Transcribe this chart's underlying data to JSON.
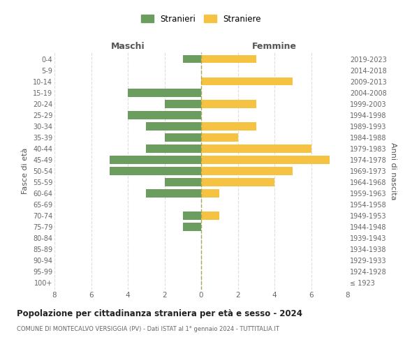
{
  "age_groups": [
    "100+",
    "95-99",
    "90-94",
    "85-89",
    "80-84",
    "75-79",
    "70-74",
    "65-69",
    "60-64",
    "55-59",
    "50-54",
    "45-49",
    "40-44",
    "35-39",
    "30-34",
    "25-29",
    "20-24",
    "15-19",
    "10-14",
    "5-9",
    "0-4"
  ],
  "birth_years": [
    "≤ 1923",
    "1924-1928",
    "1929-1933",
    "1934-1938",
    "1939-1943",
    "1944-1948",
    "1949-1953",
    "1954-1958",
    "1959-1963",
    "1964-1968",
    "1969-1973",
    "1974-1978",
    "1979-1983",
    "1984-1988",
    "1989-1993",
    "1994-1998",
    "1999-2003",
    "2004-2008",
    "2009-2013",
    "2014-2018",
    "2019-2023"
  ],
  "maschi": [
    0,
    0,
    0,
    0,
    0,
    1,
    1,
    0,
    3,
    2,
    5,
    5,
    3,
    2,
    3,
    4,
    2,
    4,
    0,
    0,
    1
  ],
  "femmine": [
    0,
    0,
    0,
    0,
    0,
    0,
    1,
    0,
    1,
    4,
    5,
    7,
    6,
    2,
    3,
    0,
    3,
    0,
    5,
    0,
    3
  ],
  "color_maschi": "#6b9e5e",
  "color_femmine": "#f5c242",
  "title": "Popolazione per cittadinanza straniera per età e sesso - 2024",
  "subtitle": "COMUNE DI MONTECALVO VERSIGGIA (PV) - Dati ISTAT al 1° gennaio 2024 - TUTTITALIA.IT",
  "ylabel_left": "Fasce di età",
  "ylabel_right": "Anni di nascita",
  "label_maschi": "Maschi",
  "label_femmine": "Femmine",
  "legend_maschi": "Stranieri",
  "legend_femmine": "Straniere",
  "xlim": 8,
  "background_color": "#ffffff",
  "grid_color": "#dddddd"
}
